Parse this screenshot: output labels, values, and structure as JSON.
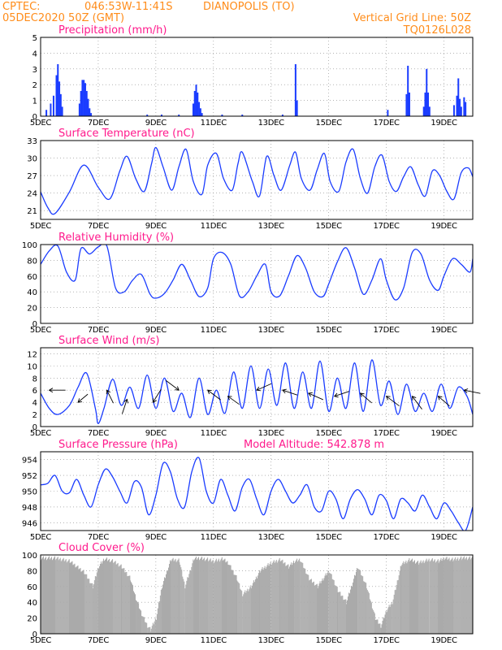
{
  "header": {
    "source": "CPTEC:",
    "coords": "046:53W-11:41S",
    "station": "DIANOPOLIS (TO)",
    "run": "05DEC2020 50Z (GMT)",
    "grid_note": "Vertical Grid Line: 50Z",
    "model_code": "TQ0126L028"
  },
  "colors": {
    "header": "#ff8c1a",
    "title": "#ff1a8c",
    "series": "#1a3cff",
    "cloud": "#aaaaaa",
    "grid": "#888888"
  },
  "x_axis": {
    "day_min": 5,
    "day_max": 20.0,
    "ticks": [
      {
        "day": 5,
        "label": "5DEC"
      },
      {
        "day": 7,
        "label": "7DEC"
      },
      {
        "day": 9,
        "label": "9DEC"
      },
      {
        "day": 11,
        "label": "11DEC"
      },
      {
        "day": 13,
        "label": "13DEC"
      },
      {
        "day": 15,
        "label": "15DEC"
      },
      {
        "day": 17,
        "label": "17DEC"
      },
      {
        "day": 19,
        "label": "19DEC"
      }
    ]
  },
  "chart_data": [
    {
      "type": "bar",
      "title": "Precipitation (mm/h)",
      "ylim": [
        0,
        5
      ],
      "yticks": [
        0,
        1,
        2,
        3,
        4,
        5
      ],
      "series": [
        {
          "day": [
            5.2,
            5.35,
            5.45,
            5.55,
            5.6,
            5.65,
            5.7,
            5.75,
            6.35,
            6.4,
            6.45,
            6.5,
            6.55,
            6.6,
            6.65,
            6.7,
            6.75,
            8.7,
            9.2,
            9.8,
            10.3,
            10.35,
            10.4,
            10.45,
            10.5,
            10.55,
            10.6,
            11.3,
            12.0,
            13.4,
            13.85,
            13.9,
            17.05,
            17.7,
            17.75,
            17.8,
            18.3,
            18.35,
            18.4,
            18.45,
            18.5,
            19.35,
            19.45,
            19.5,
            19.55,
            19.6,
            19.7,
            19.75
          ],
          "values": [
            0.4,
            0.8,
            1.3,
            2.6,
            3.3,
            2.2,
            1.4,
            0.6,
            0.8,
            1.6,
            2.3,
            2.3,
            2.1,
            1.6,
            1.1,
            0.5,
            0.2,
            0.1,
            0.1,
            0.1,
            0.8,
            1.6,
            2.0,
            1.5,
            0.9,
            0.5,
            0.2,
            0.1,
            0.1,
            0.1,
            3.3,
            1.0,
            0.4,
            1.4,
            3.2,
            1.5,
            0.6,
            1.5,
            3.0,
            1.5,
            0.6,
            0.7,
            1.3,
            2.4,
            1.1,
            0.6,
            1.2,
            0.9
          ]
        }
      ]
    },
    {
      "type": "line",
      "title": "Surface Temperature (nC)",
      "ylim": [
        19.5,
        33
      ],
      "yticks": [
        21,
        24,
        27,
        30,
        33
      ],
      "series": [
        {
          "day": [
            5.0,
            5.25,
            5.5,
            6.0,
            6.5,
            7.0,
            7.4,
            7.75,
            8.0,
            8.3,
            8.6,
            8.85,
            9.0,
            9.25,
            9.55,
            9.8,
            10.05,
            10.3,
            10.6,
            10.8,
            11.1,
            11.35,
            11.65,
            11.85,
            12.0,
            12.35,
            12.6,
            12.85,
            13.1,
            13.35,
            13.65,
            13.85,
            14.05,
            14.35,
            14.6,
            14.85,
            15.05,
            15.35,
            15.6,
            15.85,
            16.1,
            16.35,
            16.6,
            16.85,
            17.1,
            17.35,
            17.6,
            17.85,
            18.1,
            18.35,
            18.6,
            18.85,
            19.1,
            19.35,
            19.6,
            19.85,
            20.0
          ],
          "values": [
            24.2,
            21.5,
            20.5,
            24.2,
            28.8,
            25.0,
            23.0,
            27.8,
            30.3,
            26.5,
            24.3,
            29.0,
            31.8,
            28.5,
            24.5,
            28.5,
            31.5,
            26.0,
            23.8,
            28.8,
            30.8,
            26.5,
            24.5,
            29.0,
            31.0,
            26.0,
            23.5,
            30.3,
            27.0,
            24.5,
            28.8,
            31.0,
            26.5,
            24.5,
            28.0,
            30.8,
            26.0,
            24.3,
            29.3,
            31.5,
            26.5,
            24.0,
            28.5,
            30.5,
            26.0,
            24.3,
            26.8,
            28.5,
            25.5,
            23.5,
            27.8,
            27.0,
            24.3,
            23.0,
            27.5,
            28.3,
            26.8
          ]
        }
      ]
    },
    {
      "type": "line",
      "title": "Relative Humidity (%)",
      "ylim": [
        0,
        100
      ],
      "yticks": [
        0,
        20,
        40,
        60,
        80,
        100
      ],
      "series": [
        {
          "day": [
            5.0,
            5.3,
            5.6,
            5.9,
            6.2,
            6.4,
            6.7,
            7.0,
            7.3,
            7.6,
            7.9,
            8.2,
            8.5,
            8.8,
            9.0,
            9.3,
            9.6,
            9.9,
            10.2,
            10.5,
            10.8,
            11.0,
            11.3,
            11.6,
            11.9,
            12.2,
            12.5,
            12.8,
            13.0,
            13.3,
            13.6,
            13.9,
            14.2,
            14.5,
            14.8,
            15.0,
            15.3,
            15.6,
            15.9,
            16.2,
            16.5,
            16.8,
            17.0,
            17.3,
            17.6,
            17.9,
            18.2,
            18.5,
            18.8,
            19.0,
            19.3,
            19.6,
            19.9,
            20.0
          ],
          "values": [
            75,
            92,
            98,
            65,
            55,
            95,
            88,
            97,
            98,
            45,
            40,
            55,
            62,
            37,
            32,
            38,
            55,
            75,
            55,
            34,
            45,
            82,
            90,
            75,
            35,
            40,
            60,
            75,
            40,
            35,
            60,
            86,
            70,
            40,
            34,
            50,
            78,
            96,
            70,
            37,
            55,
            82,
            55,
            30,
            45,
            90,
            88,
            55,
            42,
            60,
            82,
            75,
            65,
            82
          ]
        }
      ]
    },
    {
      "type": "line",
      "title": "Surface Wind (m/s)",
      "ylim": [
        0,
        13
      ],
      "yticks": [
        0,
        2,
        4,
        6,
        8,
        10,
        12
      ],
      "series": [
        {
          "day": [
            5.0,
            5.3,
            5.6,
            6.0,
            6.3,
            6.6,
            6.9,
            7.0,
            7.2,
            7.5,
            7.8,
            8.1,
            8.4,
            8.7,
            9.0,
            9.3,
            9.6,
            9.9,
            10.2,
            10.5,
            10.8,
            11.1,
            11.4,
            11.7,
            12.0,
            12.3,
            12.6,
            12.9,
            13.2,
            13.5,
            13.8,
            14.1,
            14.4,
            14.7,
            15.0,
            15.3,
            15.6,
            15.9,
            16.2,
            16.5,
            16.8,
            17.1,
            17.4,
            17.7,
            18.0,
            18.3,
            18.6,
            18.9,
            19.2,
            19.5,
            19.8,
            20.0
          ],
          "values": [
            5.5,
            3.0,
            2.0,
            3.5,
            6.5,
            8.8,
            3.0,
            0.5,
            3.0,
            7.8,
            3.5,
            6.5,
            3.0,
            8.5,
            3.0,
            8.0,
            2.5,
            5.5,
            1.5,
            8.0,
            2.0,
            6.0,
            2.2,
            9.0,
            3.0,
            10.0,
            3.0,
            9.5,
            3.5,
            10.5,
            3.0,
            9.0,
            3.0,
            10.8,
            2.5,
            8.0,
            3.0,
            10.5,
            2.5,
            11.0,
            3.5,
            7.5,
            2.0,
            7.0,
            2.5,
            5.5,
            2.5,
            7.0,
            3.0,
            6.5,
            5.0,
            2.0
          ]
        }
      ],
      "wind_arrows": [
        {
          "day": 5.3,
          "speed": 6.0,
          "dx": 1.0,
          "dy": 0.0
        },
        {
          "day": 6.3,
          "speed": 4.0,
          "dx": 0.6,
          "dy": -0.5
        },
        {
          "day": 7.3,
          "speed": 6.0,
          "dx": 0.4,
          "dy": 0.8
        },
        {
          "day": 8.0,
          "speed": 4.5,
          "dx": -0.3,
          "dy": 0.9
        },
        {
          "day": 8.9,
          "speed": 4.0,
          "dx": 0.5,
          "dy": -0.8
        },
        {
          "day": 9.8,
          "speed": 6.0,
          "dx": -0.8,
          "dy": -0.6
        },
        {
          "day": 10.8,
          "speed": 6.0,
          "dx": 0.8,
          "dy": 0.6
        },
        {
          "day": 11.5,
          "speed": 5.0,
          "dx": 0.7,
          "dy": 0.5
        },
        {
          "day": 12.5,
          "speed": 6.0,
          "dx": 0.9,
          "dy": -0.4
        },
        {
          "day": 13.4,
          "speed": 6.0,
          "dx": 0.9,
          "dy": 0.3
        },
        {
          "day": 14.3,
          "speed": 5.5,
          "dx": 0.9,
          "dy": 0.4
        },
        {
          "day": 15.2,
          "speed": 5.0,
          "dx": 0.9,
          "dy": -0.3
        },
        {
          "day": 16.1,
          "speed": 5.5,
          "dx": 0.7,
          "dy": 0.6
        },
        {
          "day": 17.0,
          "speed": 5.0,
          "dx": 0.8,
          "dy": 0.6
        },
        {
          "day": 17.9,
          "speed": 5.0,
          "dx": 0.6,
          "dy": 0.8
        },
        {
          "day": 18.8,
          "speed": 5.0,
          "dx": 0.7,
          "dy": 0.6
        },
        {
          "day": 19.7,
          "speed": 6.0,
          "dx": 1.0,
          "dy": 0.2
        }
      ]
    },
    {
      "type": "line",
      "title": "Surface Pressure (hPa)",
      "ylim": [
        945,
        955
      ],
      "yticks": [
        946,
        948,
        950,
        952,
        954
      ],
      "series": [
        {
          "day": [
            5.0,
            5.25,
            5.5,
            5.75,
            6.0,
            6.25,
            6.5,
            6.75,
            7.0,
            7.25,
            7.5,
            7.75,
            8.0,
            8.25,
            8.5,
            8.75,
            9.0,
            9.25,
            9.5,
            9.75,
            10.0,
            10.25,
            10.5,
            10.75,
            11.0,
            11.25,
            11.5,
            11.75,
            12.0,
            12.25,
            12.5,
            12.75,
            13.0,
            13.25,
            13.5,
            13.75,
            14.0,
            14.25,
            14.5,
            14.75,
            15.0,
            15.25,
            15.5,
            15.75,
            16.0,
            16.25,
            16.5,
            16.75,
            17.0,
            17.25,
            17.5,
            17.75,
            18.0,
            18.25,
            18.5,
            18.75,
            19.0,
            19.25,
            19.5,
            19.75,
            20.0
          ],
          "values": [
            950.8,
            951.0,
            952.0,
            950.0,
            949.8,
            951.5,
            949.5,
            948.0,
            950.8,
            952.8,
            951.8,
            950.0,
            948.5,
            951.2,
            950.5,
            947.0,
            949.5,
            953.5,
            952.5,
            949.0,
            948.0,
            952.5,
            954.2,
            950.0,
            948.5,
            951.5,
            949.5,
            947.5,
            950.5,
            951.5,
            949.0,
            947.0,
            950.0,
            951.5,
            950.0,
            948.5,
            949.5,
            950.8,
            948.0,
            947.5,
            950.0,
            949.0,
            946.5,
            949.0,
            950.2,
            949.0,
            947.0,
            949.5,
            948.8,
            946.5,
            949.0,
            948.5,
            947.5,
            949.5,
            948.0,
            946.5,
            948.5,
            947.5,
            946.0,
            945.0,
            948.0
          ]
        }
      ],
      "annotation": "Model Altitude: 542.878 m"
    },
    {
      "type": "area",
      "title": "Cloud Cover (%)",
      "ylim": [
        0,
        100
      ],
      "yticks": [
        0,
        20,
        40,
        60,
        80,
        100
      ],
      "series": [
        {
          "day": [
            5.0,
            5.5,
            6.0,
            6.5,
            6.8,
            7.0,
            7.2,
            7.5,
            7.8,
            8.1,
            8.3,
            8.5,
            8.7,
            8.8,
            9.0,
            9.2,
            9.5,
            9.8,
            10.0,
            10.3,
            10.5,
            10.8,
            11.0,
            11.3,
            11.5,
            11.8,
            12.0,
            12.3,
            12.6,
            13.0,
            13.3,
            13.6,
            13.8,
            14.0,
            14.3,
            14.6,
            15.0,
            15.3,
            15.6,
            16.0,
            16.3,
            16.6,
            16.8,
            17.0,
            17.2,
            17.5,
            17.8,
            18.1,
            18.5,
            18.8,
            19.0,
            19.3,
            19.6,
            20.0
          ],
          "values": [
            96,
            96,
            92,
            78,
            60,
            85,
            95,
            92,
            85,
            70,
            45,
            25,
            10,
            5,
            20,
            60,
            94,
            93,
            60,
            95,
            96,
            94,
            92,
            95,
            90,
            70,
            50,
            60,
            80,
            90,
            94,
            85,
            92,
            94,
            70,
            60,
            80,
            55,
            40,
            85,
            60,
            20,
            10,
            30,
            40,
            88,
            94,
            90,
            94,
            92,
            96,
            94,
            96,
            96
          ]
        }
      ]
    }
  ]
}
